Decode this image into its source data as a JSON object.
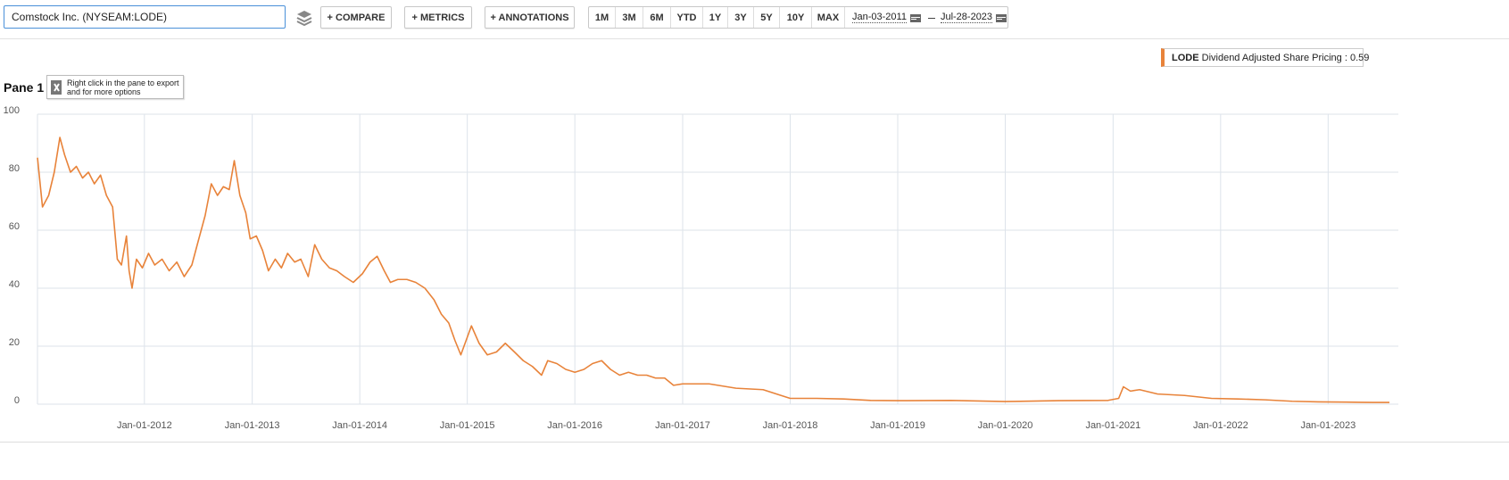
{
  "toolbar": {
    "search": "Comstock Inc. (NYSEAM:LODE)",
    "compare": "+ COMPARE",
    "metrics": "+ METRICS",
    "annotations": "+ ANNOTATIONS",
    "ranges": [
      "1M",
      "3M",
      "6M",
      "YTD",
      "1Y",
      "3Y",
      "5Y",
      "10Y",
      "MAX"
    ],
    "start_date": "Jan-03-2011",
    "end_date": "Jul-28-2023"
  },
  "pane": {
    "title": "Pane 1",
    "tip": "Right click in the pane to export and for more options"
  },
  "chart_data": {
    "type": "line",
    "legend_text": "Dividend Adjusted Share Pricing :",
    "grid": true,
    "xlim": [
      "2011-01-03",
      "2023-07-28"
    ],
    "ylim": [
      0,
      100
    ],
    "yticks": [
      0,
      20,
      40,
      60,
      80,
      100
    ],
    "xticks": [
      {
        "value": "2012-01-01",
        "label": "Jan-01-2012"
      },
      {
        "value": "2013-01-01",
        "label": "Jan-01-2013"
      },
      {
        "value": "2014-01-01",
        "label": "Jan-01-2014"
      },
      {
        "value": "2015-01-01",
        "label": "Jan-01-2015"
      },
      {
        "value": "2016-01-01",
        "label": "Jan-01-2016"
      },
      {
        "value": "2017-01-01",
        "label": "Jan-01-2017"
      },
      {
        "value": "2018-01-01",
        "label": "Jan-01-2018"
      },
      {
        "value": "2019-01-01",
        "label": "Jan-01-2019"
      },
      {
        "value": "2020-01-01",
        "label": "Jan-01-2020"
      },
      {
        "value": "2021-01-01",
        "label": "Jan-01-2021"
      },
      {
        "value": "2022-01-01",
        "label": "Jan-01-2022"
      },
      {
        "value": "2023-01-01",
        "label": "Jan-01-2023"
      }
    ],
    "x": [
      "2011-01-03",
      "2011-01-20",
      "2011-02-10",
      "2011-03-01",
      "2011-03-20",
      "2011-04-05",
      "2011-04-25",
      "2011-05-15",
      "2011-06-05",
      "2011-06-25",
      "2011-07-15",
      "2011-08-05",
      "2011-08-25",
      "2011-09-15",
      "2011-10-01",
      "2011-10-15",
      "2011-11-01",
      "2011-11-10",
      "2011-11-20",
      "2011-12-05",
      "2011-12-25",
      "2012-01-15",
      "2012-02-05",
      "2012-03-01",
      "2012-03-25",
      "2012-04-20",
      "2012-05-15",
      "2012-06-10",
      "2012-07-01",
      "2012-07-25",
      "2012-08-15",
      "2012-09-05",
      "2012-09-25",
      "2012-10-15",
      "2012-11-01",
      "2012-11-20",
      "2012-12-10",
      "2012-12-25",
      "2013-01-15",
      "2013-02-05",
      "2013-02-25",
      "2013-03-20",
      "2013-04-10",
      "2013-05-01",
      "2013-05-25",
      "2013-06-15",
      "2013-07-10",
      "2013-08-01",
      "2013-08-25",
      "2013-09-20",
      "2013-10-15",
      "2013-11-10",
      "2013-12-10",
      "2014-01-10",
      "2014-02-05",
      "2014-03-01",
      "2014-03-25",
      "2014-04-15",
      "2014-05-10",
      "2014-06-10",
      "2014-07-10",
      "2014-08-10",
      "2014-09-10",
      "2014-10-05",
      "2014-10-30",
      "2014-11-20",
      "2014-12-10",
      "2014-12-28",
      "2015-01-15",
      "2015-02-10",
      "2015-03-10",
      "2015-04-10",
      "2015-05-10",
      "2015-06-10",
      "2015-07-10",
      "2015-08-10",
      "2015-09-10",
      "2015-10-01",
      "2015-11-01",
      "2015-12-01",
      "2016-01-01",
      "2016-02-01",
      "2016-03-01",
      "2016-04-01",
      "2016-05-01",
      "2016-06-01",
      "2016-07-01",
      "2016-08-01",
      "2016-09-01",
      "2016-10-01",
      "2016-11-01",
      "2016-12-01",
      "2017-01-01",
      "2017-04-01",
      "2017-07-01",
      "2017-10-01",
      "2017-12-01",
      "2018-01-01",
      "2018-04-01",
      "2018-07-01",
      "2018-10-01",
      "2019-01-01",
      "2019-07-01",
      "2020-01-01",
      "2020-07-01",
      "2020-12-15",
      "2021-01-20",
      "2021-02-05",
      "2021-03-01",
      "2021-04-01",
      "2021-06-01",
      "2021-09-01",
      "2021-12-01",
      "2022-03-01",
      "2022-06-01",
      "2022-09-01",
      "2022-12-01",
      "2023-03-01",
      "2023-06-01",
      "2023-07-28"
    ],
    "series": [
      {
        "name": "LODE",
        "color": "#e8833a",
        "values": [
          85,
          68,
          72,
          80,
          92,
          86,
          80,
          82,
          78,
          80,
          76,
          79,
          72,
          68,
          50,
          48,
          58,
          46,
          40,
          50,
          47,
          52,
          48,
          50,
          46,
          49,
          44,
          48,
          56,
          65,
          76,
          72,
          75,
          74,
          84,
          72,
          66,
          57,
          58,
          53,
          46,
          50,
          47,
          52,
          49,
          50,
          44,
          55,
          50,
          47,
          46,
          44,
          42,
          45,
          49,
          51,
          46,
          42,
          43,
          43,
          42,
          40,
          36,
          31,
          28,
          22,
          17,
          22,
          27,
          21,
          17,
          18,
          21,
          18,
          15,
          13,
          10,
          15,
          14,
          12,
          11,
          12,
          14,
          15,
          12,
          10,
          11,
          10,
          10,
          9,
          9,
          6.5,
          7,
          7,
          5.5,
          5,
          3,
          2,
          2,
          1.8,
          1.3,
          1.2,
          1.3,
          0.9,
          1.2,
          1.3,
          2,
          6,
          4.5,
          5,
          3.5,
          3,
          2,
          1.8,
          1.5,
          1,
          0.8,
          0.7,
          0.6,
          0.59
        ]
      }
    ]
  }
}
